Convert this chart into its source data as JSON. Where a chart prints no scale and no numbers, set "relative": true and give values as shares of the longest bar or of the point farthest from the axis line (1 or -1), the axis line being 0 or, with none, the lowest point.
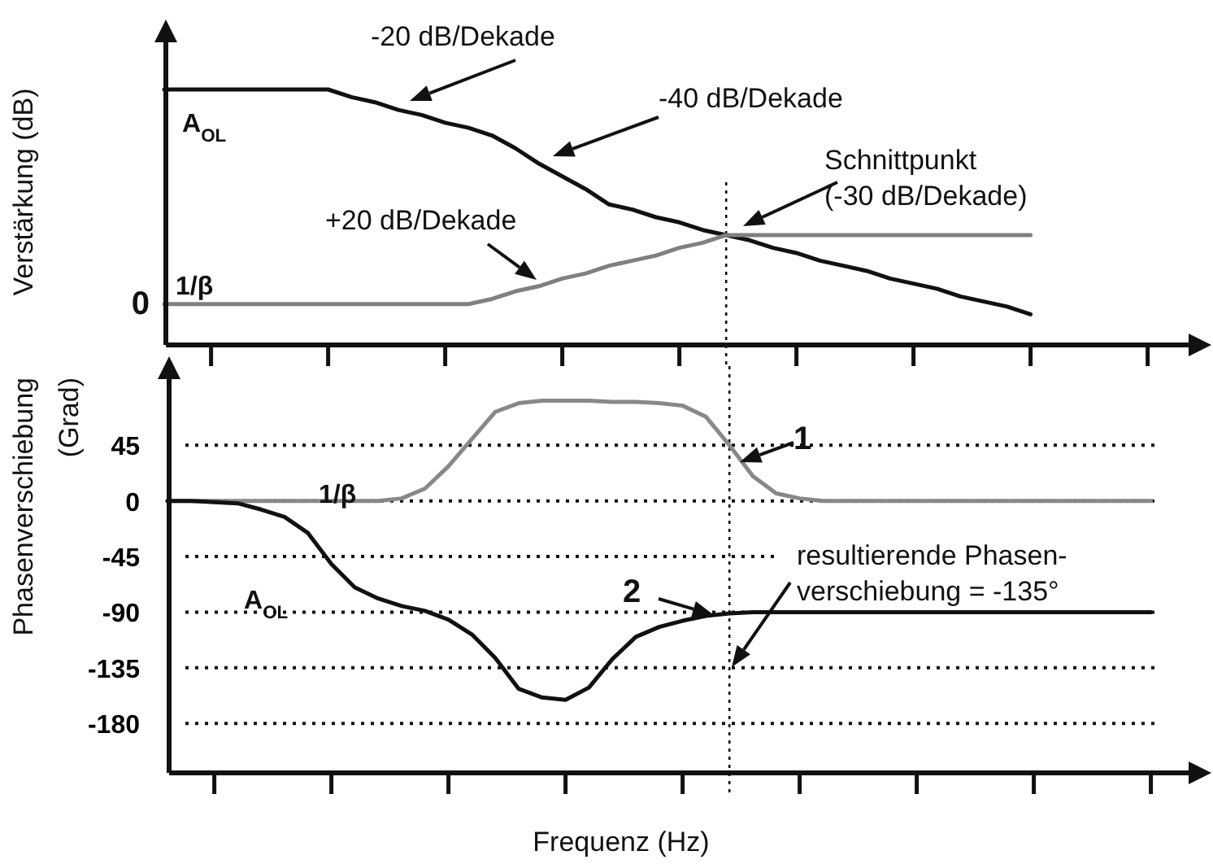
{
  "chart_data": [
    {
      "type": "line",
      "relative": true,
      "ylabel": "Verstärkung (dB)",
      "categories": [
        null,
        null,
        null,
        null,
        null,
        null,
        null,
        null,
        null,
        null,
        null,
        null,
        null,
        null,
        null,
        null,
        null,
        null,
        null,
        null,
        null,
        null,
        null,
        null,
        null,
        null,
        null,
        null,
        null,
        null,
        null,
        null,
        null,
        null,
        null,
        null,
        null,
        null,
        null,
        null,
        null,
        null,
        null
      ],
      "series": [
        {
          "name": "A$_{OL}$",
          "color": "#111111",
          "values": [
            1,
            1,
            1,
            1,
            1,
            1,
            1,
            1,
            0.97,
            0.95,
            0.92,
            0.9,
            0.87,
            0.85,
            0.82,
            0.77,
            0.71,
            0.66,
            0.61,
            0.55,
            0.53,
            0.5,
            0.48,
            0.45,
            0.43,
            0.41,
            0.38,
            0.36,
            0.33,
            0.31,
            0.29,
            0.26,
            0.24,
            0.22,
            0.19,
            0.17,
            0.15,
            0.12,
            null,
            null,
            null,
            null,
            null
          ]
        },
        {
          "name": "1/β",
          "color": "#808080",
          "values": [
            0.16,
            0.16,
            0.16,
            0.16,
            0.16,
            0.16,
            0.16,
            0.16,
            0.16,
            0.16,
            0.16,
            0.16,
            0.16,
            0.16,
            0.18,
            0.21,
            0.23,
            0.26,
            0.28,
            0.31,
            0.33,
            0.35,
            0.38,
            0.4,
            0.43,
            0.43,
            0.43,
            0.43,
            0.43,
            0.43,
            0.43,
            0.43,
            0.43,
            0.43,
            0.43,
            0.43,
            0.43,
            0.43,
            null,
            null,
            null,
            null,
            null
          ]
        }
      ],
      "annotations": [
        "-20 dB/Dekade",
        "-40 dB/Dekade",
        "Schnittpunkt\n(-30 dB/Dekade)",
        "+20 dB/Dekade",
        "0"
      ]
    },
    {
      "type": "line",
      "ylabel": "Phasenverschiebung\n(Grad)",
      "xlabel": "Frequenz (Hz)",
      "ylim": [
        -220,
        109
      ],
      "yticks": [
        45,
        0,
        -45,
        -90,
        -135,
        -180
      ],
      "grid": "y",
      "line_style": "solid",
      "categories": [
        null,
        null,
        null,
        null,
        null,
        null,
        null,
        null,
        null,
        null,
        null,
        null,
        null,
        null,
        null,
        null,
        null,
        null,
        null,
        null,
        null,
        null,
        null,
        null,
        null,
        null,
        null,
        null,
        null,
        null,
        null,
        null,
        null,
        null,
        null,
        null,
        null,
        null,
        null,
        null,
        null,
        null,
        null
      ],
      "series": [
        {
          "name": "1/β",
          "color": "#888888",
          "values": [
            0,
            0,
            0,
            0,
            0,
            0,
            0,
            0,
            0,
            0,
            2,
            10,
            28,
            50,
            72,
            79,
            81,
            81,
            81,
            80,
            80,
            79,
            77,
            68,
            45,
            20,
            6,
            2,
            0,
            0,
            0,
            0,
            0,
            0,
            0,
            0,
            0,
            0,
            0,
            0,
            0,
            0,
            0
          ]
        },
        {
          "name": "A$_{OL}$",
          "color": "#111111",
          "values": [
            0,
            0,
            -1,
            -2,
            -7,
            -13,
            -26,
            -51,
            -70,
            -79,
            -85,
            -89,
            -96,
            -108,
            -127,
            -152,
            -159,
            -161,
            -151,
            -128,
            -110,
            -102,
            -97,
            -93,
            -91,
            -90,
            -90,
            -90,
            -90,
            -90,
            -90,
            -90,
            -90,
            -90,
            -90,
            -90,
            -90,
            -90,
            -90,
            -90,
            -90,
            -90,
            -90
          ]
        }
      ],
      "annotations": [
        "1",
        "2",
        "resultierende Phasen-\nverschiebung = -135°"
      ]
    }
  ]
}
